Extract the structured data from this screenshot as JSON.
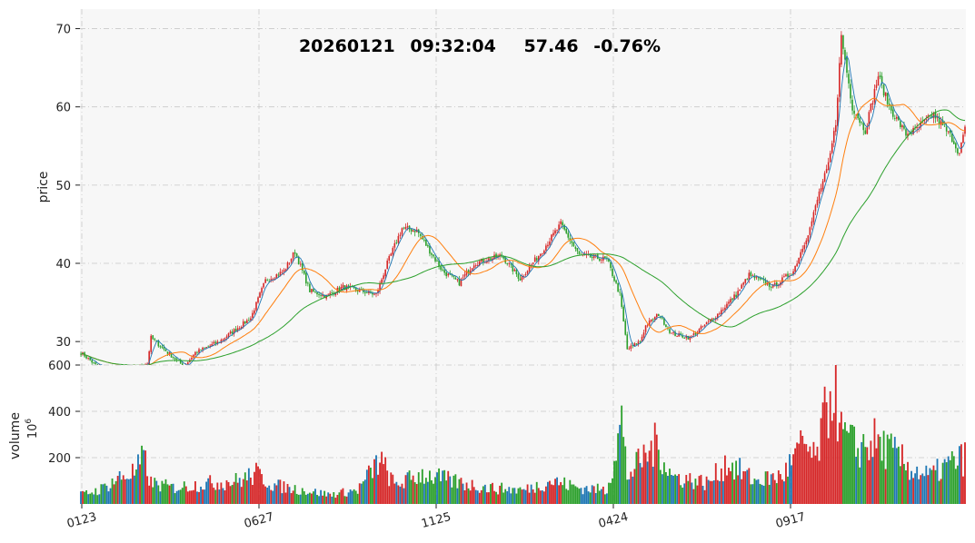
{
  "header": {
    "date": "20260121",
    "time": "09:32:04",
    "price": "57.46",
    "change": "-0.76%"
  },
  "colors": {
    "up": "#d62728",
    "down": "#2ca02c",
    "ma_short": "#1f77b4",
    "ma_mid": "#ff7f0e",
    "ma_long": "#2ca02c",
    "vol_flat": "#1f77b4",
    "vol_up": "#d62728",
    "vol_down": "#2ca02c",
    "panel_bg": "#f7f7f7",
    "grid": "#c8c8c8"
  },
  "chart_data": [
    {
      "type": "candlestick",
      "ylabel": "price",
      "ylim": [
        27,
        72.5
      ],
      "yticks": [
        30,
        40,
        50,
        60,
        70
      ],
      "grid": true,
      "x_ticks": [
        "0123",
        "0627",
        "1125",
        "0424",
        "0917"
      ],
      "n_bars": 480,
      "close_keyframes": [
        [
          0,
          28.6
        ],
        [
          8,
          27.0
        ],
        [
          15,
          26.4
        ],
        [
          30,
          26.7
        ],
        [
          36,
          27.2
        ],
        [
          38,
          30.5
        ],
        [
          44,
          29.2
        ],
        [
          56,
          26.8
        ],
        [
          62,
          28.6
        ],
        [
          75,
          30.0
        ],
        [
          92,
          33.0
        ],
        [
          100,
          37.8
        ],
        [
          110,
          39.0
        ],
        [
          116,
          41.5
        ],
        [
          124,
          36.5
        ],
        [
          133,
          35.8
        ],
        [
          142,
          37.0
        ],
        [
          160,
          36.0
        ],
        [
          166,
          40.0
        ],
        [
          174,
          44.5
        ],
        [
          182,
          44.2
        ],
        [
          196,
          39.0
        ],
        [
          205,
          37.5
        ],
        [
          213,
          40.0
        ],
        [
          228,
          41.0
        ],
        [
          238,
          38.0
        ],
        [
          248,
          41.0
        ],
        [
          260,
          45.0
        ],
        [
          270,
          41.0
        ],
        [
          285,
          40.5
        ],
        [
          292,
          36.0
        ],
        [
          296,
          29.0
        ],
        [
          303,
          30.0
        ],
        [
          306,
          32.0
        ],
        [
          313,
          33.5
        ],
        [
          320,
          31.0
        ],
        [
          330,
          30.5
        ],
        [
          345,
          33.5
        ],
        [
          355,
          36.0
        ],
        [
          362,
          38.5
        ],
        [
          375,
          37.0
        ],
        [
          386,
          39.0
        ],
        [
          395,
          44.5
        ],
        [
          400,
          49.0
        ],
        [
          405,
          52.5
        ],
        [
          409,
          58.0
        ],
        [
          412,
          69.0
        ],
        [
          418,
          60.0
        ],
        [
          425,
          57.0
        ],
        [
          432,
          64.0
        ],
        [
          438,
          60.0
        ],
        [
          447,
          56.5
        ],
        [
          452,
          57.0
        ],
        [
          462,
          59.0
        ],
        [
          472,
          56.0
        ],
        [
          476,
          54.0
        ],
        [
          479,
          57.46
        ]
      ],
      "ma_windows": [
        5,
        20,
        60
      ]
    },
    {
      "type": "bar",
      "ylabel": "volume",
      "unit": "10",
      "unit_exp": "6",
      "ylim": [
        0,
        600
      ],
      "yticks": [
        200,
        400,
        600
      ],
      "volume_keyframes": [
        [
          0,
          40
        ],
        [
          10,
          60
        ],
        [
          20,
          110
        ],
        [
          30,
          140
        ],
        [
          34,
          200
        ],
        [
          38,
          90
        ],
        [
          50,
          70
        ],
        [
          70,
          90
        ],
        [
          85,
          100
        ],
        [
          95,
          130
        ],
        [
          105,
          80
        ],
        [
          120,
          60
        ],
        [
          135,
          40
        ],
        [
          150,
          60
        ],
        [
          162,
          190
        ],
        [
          170,
          80
        ],
        [
          185,
          130
        ],
        [
          200,
          100
        ],
        [
          220,
          70
        ],
        [
          240,
          60
        ],
        [
          255,
          100
        ],
        [
          270,
          70
        ],
        [
          285,
          60
        ],
        [
          290,
          250
        ],
        [
          293,
          360
        ],
        [
          296,
          120
        ],
        [
          305,
          200
        ],
        [
          312,
          260
        ],
        [
          320,
          120
        ],
        [
          340,
          90
        ],
        [
          350,
          180
        ],
        [
          365,
          100
        ],
        [
          380,
          120
        ],
        [
          392,
          260
        ],
        [
          398,
          180
        ],
        [
          404,
          400
        ],
        [
          408,
          560
        ],
        [
          412,
          300
        ],
        [
          420,
          240
        ],
        [
          430,
          270
        ],
        [
          440,
          220
        ],
        [
          450,
          150
        ],
        [
          460,
          120
        ],
        [
          470,
          170
        ],
        [
          479,
          200
        ]
      ]
    }
  ]
}
